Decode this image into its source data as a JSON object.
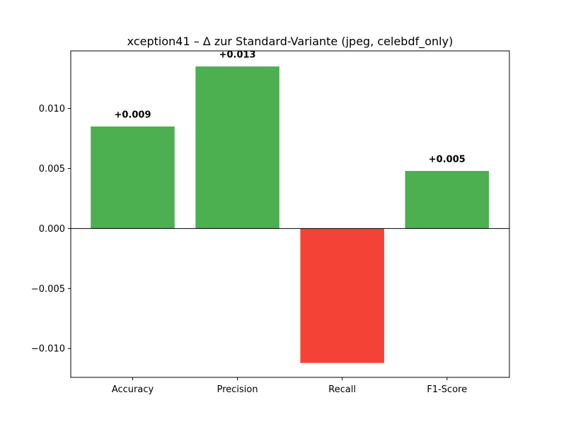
{
  "chart_data": {
    "type": "bar",
    "title": "xception41 – Δ zur Standard-Variante (jpeg, celebdf_only)",
    "xlabel": "",
    "ylabel": "",
    "categories": [
      "Accuracy",
      "Precision",
      "Recall",
      "F1-Score"
    ],
    "values": [
      0.0085,
      0.0135,
      -0.0112,
      0.0048
    ],
    "value_labels": [
      "+0.009",
      "+0.013",
      "",
      "+0.005"
    ],
    "ylim": [
      -0.0124,
      0.0148
    ],
    "yticks": [
      -0.01,
      -0.005,
      0.0,
      0.005,
      0.01
    ],
    "ytick_labels": [
      "−0.010",
      "−0.005",
      "0.000",
      "0.005",
      "0.010"
    ],
    "grid": false,
    "baseline": 0,
    "colors": {
      "positive": "#4caf50",
      "negative": "#f44336",
      "axis": "#000000"
    }
  }
}
